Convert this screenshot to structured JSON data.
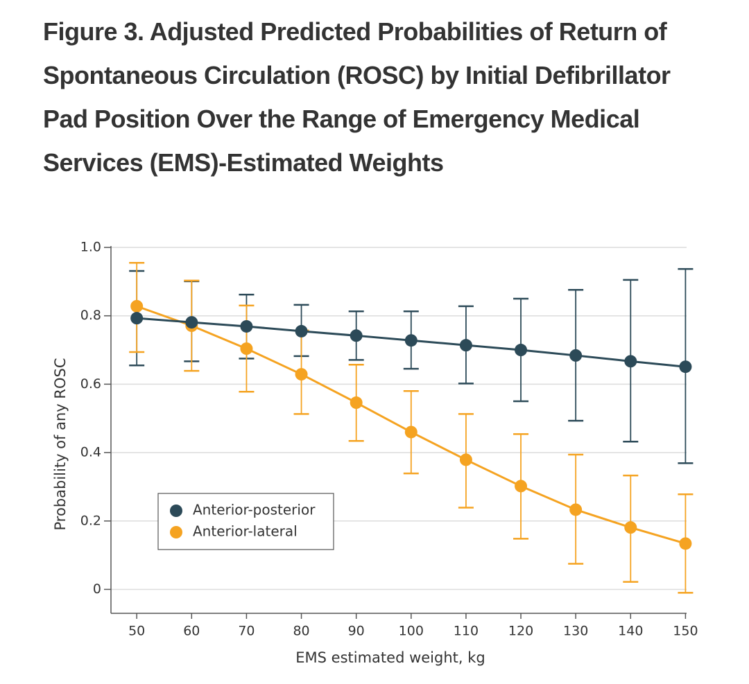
{
  "chart_data": {
    "type": "line",
    "title": "Figure 3.  Adjusted Predicted Probabilities of Return of Spontaneous Circulation (ROSC) by Initial Defibrillator Pad Position Over the Range of Emergency Medical Services (EMS)-Estimated Weights",
    "x_label": "EMS estimated weight, kg",
    "y_label": "Probability of any ROSC",
    "x": [
      50,
      60,
      70,
      80,
      90,
      100,
      110,
      120,
      130,
      140,
      150
    ],
    "series": [
      {
        "name": "Anterior-posterior",
        "color": "#2c4a58",
        "values": [
          0.793,
          0.781,
          0.769,
          0.755,
          0.742,
          0.728,
          0.714,
          0.7,
          0.684,
          0.667,
          0.651
        ],
        "lower": [
          0.655,
          0.667,
          0.675,
          0.682,
          0.671,
          0.645,
          0.602,
          0.55,
          0.493,
          0.432,
          0.369
        ],
        "upper": [
          0.931,
          0.901,
          0.862,
          0.832,
          0.813,
          0.813,
          0.828,
          0.85,
          0.876,
          0.905,
          0.937
        ]
      },
      {
        "name": "Anterior-lateral",
        "color": "#f5a321",
        "values": [
          0.828,
          0.771,
          0.704,
          0.629,
          0.546,
          0.46,
          0.379,
          0.302,
          0.233,
          0.181,
          0.134
        ],
        "lower": [
          0.694,
          0.639,
          0.578,
          0.513,
          0.434,
          0.339,
          0.239,
          0.148,
          0.075,
          0.022,
          -0.01
        ],
        "upper": [
          0.955,
          0.903,
          0.83,
          0.757,
          0.657,
          0.58,
          0.513,
          0.454,
          0.394,
          0.333,
          0.278
        ]
      }
    ],
    "xlim": [
      45.3,
      150.2
    ],
    "ylim": [
      -0.07,
      1.0
    ],
    "xticks": [
      50,
      60,
      70,
      80,
      90,
      100,
      110,
      120,
      130,
      140,
      150
    ],
    "yticks": [
      0,
      0.2,
      0.4,
      0.6,
      0.8,
      {
        "value": 1,
        "label": "1.0"
      }
    ],
    "grid": true,
    "legend": "lower left"
  }
}
